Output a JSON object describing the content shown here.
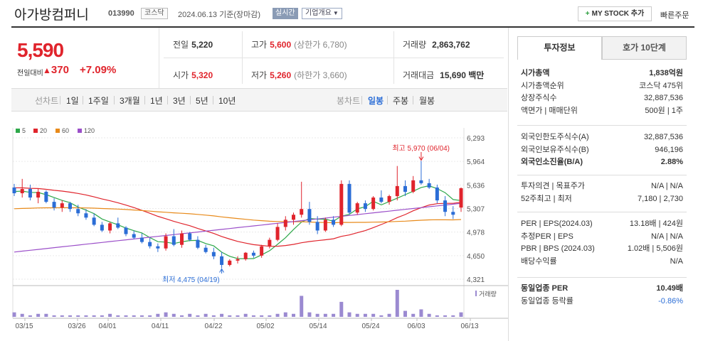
{
  "header": {
    "title": "아가방컴퍼니",
    "code": "013990",
    "market": "코스닥",
    "date": "2024.06.13 기준(장마감)",
    "realtime": "실시간",
    "corp_info": "기업개요",
    "mystock": "MY STOCK 추가",
    "quick_order": "빠른주문"
  },
  "price": {
    "current": "5,590",
    "change_label": "전일대비",
    "change_arrow": "▲",
    "change": "370",
    "rate": "+7.09%"
  },
  "summary": {
    "prev_label": "전일",
    "prev": "5,220",
    "high_label": "고가",
    "high": "5,600",
    "upper_limit": "(상한가 6,780)",
    "volume_label": "거래량",
    "volume": "2,863,762",
    "open_label": "시가",
    "open": "5,320",
    "low_label": "저가",
    "low": "5,260",
    "lower_limit": "(하한가 3,660)",
    "amount_label": "거래대금",
    "amount": "15,690 백만"
  },
  "toolbar": {
    "line_label": "선차트",
    "periods": [
      "1일",
      "1주일",
      "3개월",
      "1년",
      "3년",
      "5년",
      "10년"
    ],
    "candle_label": "봉차트",
    "candles": [
      "일봉",
      "주봉",
      "월봉"
    ]
  },
  "legend": [
    {
      "label": "5",
      "color": "#2ea84a"
    },
    {
      "label": "20",
      "color": "#e0242c"
    },
    {
      "label": "60",
      "color": "#e88a1a"
    },
    {
      "label": "120",
      "color": "#9b4fc9"
    }
  ],
  "colors": {
    "up": "#e0242c",
    "down": "#2b6dd6",
    "volume": "#9b8ad1",
    "ma5": "#2ea84a",
    "ma20": "#e0242c",
    "ma60": "#e88a1a",
    "ma120": "#9b4fc9"
  },
  "chart_data": {
    "type": "candlestick",
    "y_ticks": [
      "6,293",
      "5,964",
      "5,636",
      "5,307",
      "4,978",
      "4,650",
      "4,321"
    ],
    "ylim": [
      4321,
      6293
    ],
    "x_ticks": [
      "03/15",
      "03/26",
      "04/01",
      "04/11",
      "04/22",
      "05/02",
      "05/14",
      "05/24",
      "06/03",
      "06/13"
    ],
    "high_annotation": "최고 5,970 (06/04)",
    "low_annotation": "최저 4,475 (04/19)",
    "volume_label": "거래량",
    "candles": [
      [
        5600,
        5650,
        5480,
        5520
      ],
      [
        5520,
        5720,
        5460,
        5580
      ],
      [
        5580,
        5640,
        5420,
        5460
      ],
      [
        5460,
        5580,
        5380,
        5540
      ],
      [
        5540,
        5560,
        5380,
        5400
      ],
      [
        5400,
        5450,
        5280,
        5320
      ],
      [
        5320,
        5420,
        5260,
        5380
      ],
      [
        5380,
        5400,
        5260,
        5300
      ],
      [
        5300,
        5360,
        5200,
        5240
      ],
      [
        5240,
        5300,
        5150,
        5180
      ],
      [
        5180,
        5240,
        5060,
        5080
      ],
      [
        5080,
        5120,
        4980,
        5000
      ],
      [
        5000,
        5120,
        4960,
        5100
      ],
      [
        5100,
        5180,
        5020,
        5040
      ],
      [
        5040,
        5060,
        4920,
        4950
      ],
      [
        4950,
        5000,
        4880,
        4900
      ],
      [
        4900,
        4960,
        4820,
        4840
      ],
      [
        4840,
        4900,
        4750,
        4780
      ],
      [
        4780,
        4820,
        4700,
        4750
      ],
      [
        4750,
        4960,
        4720,
        4920
      ],
      [
        4920,
        5020,
        4780,
        4800
      ],
      [
        4800,
        5000,
        4760,
        4960
      ],
      [
        4960,
        4980,
        4850,
        4870
      ],
      [
        4870,
        4920,
        4740,
        4760
      ],
      [
        4760,
        4800,
        4680,
        4700
      ],
      [
        4700,
        4760,
        4600,
        4640
      ],
      [
        4640,
        4700,
        4475,
        4520
      ],
      [
        4520,
        4600,
        4500,
        4580
      ],
      [
        4580,
        4640,
        4540,
        4600
      ],
      [
        4600,
        4700,
        4580,
        4690
      ],
      [
        4690,
        4720,
        4620,
        4650
      ],
      [
        4650,
        4800,
        4620,
        4780
      ],
      [
        4780,
        4900,
        4750,
        4870
      ],
      [
        4870,
        5100,
        4850,
        5050
      ],
      [
        5050,
        5200,
        5000,
        5150
      ],
      [
        5150,
        5250,
        5080,
        5220
      ],
      [
        5220,
        5680,
        5180,
        5300
      ],
      [
        5300,
        5400,
        5080,
        5120
      ],
      [
        5120,
        5200,
        4950,
        5000
      ],
      [
        5000,
        5180,
        4980,
        5150
      ],
      [
        5150,
        5200,
        5050,
        5080
      ],
      [
        5080,
        5700,
        5060,
        5650
      ],
      [
        5650,
        5700,
        5220,
        5250
      ],
      [
        5250,
        5400,
        5220,
        5380
      ],
      [
        5380,
        5420,
        5260,
        5300
      ],
      [
        5300,
        5480,
        5280,
        5460
      ],
      [
        5460,
        5560,
        5380,
        5400
      ],
      [
        5400,
        5500,
        5360,
        5480
      ],
      [
        5480,
        5900,
        5420,
        5620
      ],
      [
        5620,
        5700,
        5480,
        5540
      ],
      [
        5540,
        5760,
        5520,
        5700
      ],
      [
        5700,
        5970,
        5640,
        5660
      ],
      [
        5660,
        5720,
        5580,
        5600
      ],
      [
        5600,
        5640,
        5380,
        5420
      ],
      [
        5420,
        5480,
        5200,
        5260
      ],
      [
        5260,
        5340,
        5160,
        5220
      ],
      [
        5320,
        5600,
        5260,
        5590
      ]
    ],
    "volumes": [
      3,
      2,
      1,
      2,
      2,
      1,
      1,
      1,
      1,
      1,
      1,
      1,
      2,
      1,
      1,
      1,
      1,
      1,
      2,
      3,
      2,
      1,
      2,
      1,
      2,
      1,
      2,
      1,
      1,
      2,
      1,
      1,
      1,
      2,
      3,
      2,
      14,
      3,
      2,
      2,
      2,
      10,
      3,
      2,
      2,
      2,
      1,
      2,
      18,
      4,
      2,
      5,
      2,
      1,
      1,
      1,
      3
    ]
  },
  "invest_panel": {
    "tab_active": "투자정보",
    "tab_inactive": "호가 10단계",
    "rows1": [
      {
        "k": "시가총액",
        "v": "1,838억원",
        "b": true
      },
      {
        "k": "시가총액순위",
        "v": "코스닥 475위"
      },
      {
        "k": "상장주식수",
        "v": "32,887,536"
      },
      {
        "k": "액면가 | 매매단위",
        "v": "500원 | 1주"
      }
    ],
    "rows2": [
      {
        "k": "외국인한도주식수(A)",
        "v": "32,887,536"
      },
      {
        "k": "외국인보유주식수(B)",
        "v": "946,196"
      },
      {
        "k": "외국인소진율(B/A)",
        "v": "2.88%",
        "b": true
      }
    ],
    "rows3": [
      {
        "k": "투자의견 | 목표주가",
        "v": "N/A | N/A"
      },
      {
        "k": "52주최고 | 최저",
        "v": "7,180 | 2,730"
      }
    ],
    "rows4": [
      {
        "k": "PER | EPS(2024.03)",
        "v": "13.18배 | 424원"
      },
      {
        "k": "추정PER | EPS",
        "v": "N/A | N/A"
      },
      {
        "k": "PBR | BPS (2024.03)",
        "v": "1.02배 | 5,506원"
      },
      {
        "k": "배당수익률",
        "v": "N/A"
      }
    ],
    "rows5": [
      {
        "k": "동일업종 PER",
        "v": "10.49배",
        "b": true
      },
      {
        "k": "동일업종 등락률",
        "v": "-0.86%",
        "blue": true
      }
    ]
  }
}
